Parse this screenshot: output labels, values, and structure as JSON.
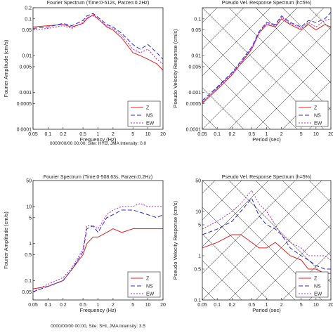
{
  "colors": {
    "Z": "#e02020",
    "NS": "#2a2ad0",
    "EW": "#c020c0"
  },
  "chart_data": [
    {
      "type": "line",
      "title": "Fourier Spectrum (Time:0-512s, Parzen:0.2Hz)",
      "xlabel": "Frequency (Hz)",
      "ylabel": "Fourier Amplitude (cm/s)",
      "xscale": "log",
      "yscale": "log",
      "xlim": [
        0.05,
        20
      ],
      "ylim": [
        0.0001,
        0.2
      ],
      "xticks": [
        "0.05",
        "0.1",
        "0.2",
        "0.5",
        "1",
        "2",
        "5",
        "10",
        "20"
      ],
      "yticks": [
        "0.2",
        "0.1",
        "0.05",
        "0.01",
        "0.005",
        "0.001",
        "0.0005",
        "0.0001"
      ],
      "legend": "bottom-right",
      "footer": "0000/00/00 00:00, Site: HYB, JMA Intensity: 0.0",
      "series": [
        {
          "name": "Z",
          "x": [
            0.05,
            0.1,
            0.2,
            0.3,
            0.5,
            0.6,
            0.8,
            1,
            1.5,
            2,
            3,
            5,
            7,
            10,
            15,
            20
          ],
          "y": [
            0.06,
            0.065,
            0.07,
            0.06,
            0.075,
            0.1,
            0.13,
            0.1,
            0.06,
            0.05,
            0.03,
            0.012,
            0.01,
            0.008,
            0.006,
            0.004
          ]
        },
        {
          "name": "NS",
          "x": [
            0.05,
            0.1,
            0.2,
            0.3,
            0.5,
            0.6,
            0.8,
            1,
            1.5,
            2,
            3,
            5,
            7,
            10,
            15,
            20
          ],
          "y": [
            0.055,
            0.06,
            0.075,
            0.065,
            0.09,
            0.12,
            0.14,
            0.11,
            0.07,
            0.06,
            0.04,
            0.02,
            0.015,
            0.02,
            0.012,
            0.008
          ]
        },
        {
          "name": "EW",
          "x": [
            0.05,
            0.1,
            0.2,
            0.3,
            0.5,
            0.6,
            0.8,
            1,
            1.5,
            2,
            3,
            5,
            7,
            10,
            15,
            20
          ],
          "y": [
            0.05,
            0.055,
            0.065,
            0.055,
            0.08,
            0.11,
            0.12,
            0.1,
            0.065,
            0.055,
            0.035,
            0.015,
            0.012,
            0.015,
            0.008,
            0.006
          ]
        }
      ]
    },
    {
      "type": "line",
      "title": "Pseudo Vel. Response Spectrum (h=5%)",
      "xlabel": "Period (sec)",
      "ylabel": "Pseudo Velocity Response (cm/s)",
      "xscale": "log",
      "yscale": "log",
      "xlim": [
        0.05,
        20
      ],
      "ylim": [
        0.0001,
        0.2
      ],
      "xticks": [
        "0.05",
        "0.1",
        "0.2",
        "0.5",
        "1",
        "2",
        "5",
        "10",
        "20"
      ],
      "yticks": [
        "0.1",
        "0.05",
        "0.01",
        "0.005",
        "0.001",
        "0.0005",
        "0.0001"
      ],
      "legend": "bottom-right",
      "series": [
        {
          "name": "Z",
          "x": [
            0.05,
            0.1,
            0.2,
            0.3,
            0.5,
            0.7,
            1,
            1.5,
            2,
            3,
            5,
            7,
            10,
            15,
            20
          ],
          "y": [
            0.0005,
            0.0012,
            0.003,
            0.006,
            0.015,
            0.04,
            0.07,
            0.06,
            0.1,
            0.07,
            0.05,
            0.07,
            0.05,
            0.07,
            0.06
          ]
        },
        {
          "name": "NS",
          "x": [
            0.05,
            0.1,
            0.2,
            0.3,
            0.5,
            0.7,
            1,
            1.5,
            2,
            3,
            5,
            7,
            10,
            15,
            20
          ],
          "y": [
            0.0006,
            0.0014,
            0.0035,
            0.007,
            0.017,
            0.045,
            0.08,
            0.07,
            0.12,
            0.08,
            0.06,
            0.09,
            0.08,
            0.1,
            0.15
          ]
        },
        {
          "name": "EW",
          "x": [
            0.05,
            0.1,
            0.2,
            0.3,
            0.5,
            0.7,
            1,
            1.5,
            2,
            3,
            5,
            7,
            10,
            15,
            20
          ],
          "y": [
            0.00055,
            0.0013,
            0.0032,
            0.0065,
            0.016,
            0.042,
            0.075,
            0.065,
            0.11,
            0.075,
            0.055,
            0.08,
            0.06,
            0.09,
            0.1
          ]
        }
      ]
    },
    {
      "type": "line",
      "title": "Fourier Spectrum (Time:0-508.63s, Parzen:0.2Hz)",
      "xlabel": "Frequency (Hz)",
      "ylabel": "Fourier Amplitude (cm/s)",
      "xscale": "log",
      "yscale": "log",
      "xlim": [
        0.05,
        20
      ],
      "ylim": [
        0.03,
        50
      ],
      "xticks": [
        "0.05",
        "0.1",
        "0.2",
        "0.5",
        "1",
        "2",
        "5",
        "10",
        "20"
      ],
      "yticks": [
        "50",
        "10",
        "5",
        "1",
        "0.5",
        "0.1",
        "0.05"
      ],
      "legend": "bottom-right",
      "footer": "0000/00/00 00:00, Site: SHI, JMA Intensity: 3.5",
      "series": [
        {
          "name": "Z",
          "x": [
            0.05,
            0.1,
            0.2,
            0.3,
            0.5,
            0.6,
            0.8,
            1,
            1.5,
            2,
            3,
            5,
            7,
            10,
            15,
            20
          ],
          "y": [
            0.06,
            0.07,
            0.1,
            0.2,
            0.5,
            1.0,
            1.5,
            1.5,
            2,
            2.5,
            2,
            2.5,
            2.5,
            2.5,
            2.5,
            2.5
          ]
        },
        {
          "name": "NS",
          "x": [
            0.05,
            0.1,
            0.2,
            0.3,
            0.5,
            0.6,
            0.8,
            1,
            1.5,
            2,
            3,
            5,
            7,
            10,
            15,
            20
          ],
          "y": [
            0.05,
            0.07,
            0.1,
            0.2,
            0.6,
            2.5,
            3,
            2,
            5,
            6,
            8,
            8,
            7,
            6,
            5,
            6
          ]
        },
        {
          "name": "EW",
          "x": [
            0.05,
            0.1,
            0.2,
            0.3,
            0.5,
            0.6,
            0.8,
            1,
            1.5,
            2,
            3,
            5,
            7,
            10,
            15,
            20
          ],
          "y": [
            0.05,
            0.08,
            0.12,
            0.22,
            0.7,
            3,
            3,
            2.5,
            6,
            8,
            10,
            10,
            12,
            10,
            10,
            10
          ]
        }
      ]
    },
    {
      "type": "line",
      "title": "Pseudo Vel. Response Spectrum (h=5%)",
      "xlabel": "Period (sec)",
      "ylabel": "Pseudo Velocity Response (cm/s)",
      "xscale": "log",
      "yscale": "log",
      "xlim": [
        0.05,
        20
      ],
      "ylim": [
        0.1,
        50
      ],
      "xticks": [
        "0.05",
        "0.1",
        "0.2",
        "0.5",
        "1",
        "2",
        "5",
        "10",
        "20"
      ],
      "yticks": [
        "50",
        "10",
        "5",
        "1",
        "0.5",
        "0.1"
      ],
      "legend": "bottom-right",
      "series": [
        {
          "name": "Z",
          "x": [
            0.05,
            0.1,
            0.2,
            0.3,
            0.5,
            0.7,
            1,
            1.5,
            2,
            3,
            5,
            7,
            10,
            15,
            20
          ],
          "y": [
            1.5,
            2,
            3,
            3,
            2,
            1.5,
            1.5,
            2,
            1.5,
            1,
            0.8,
            0.5,
            0.5,
            0.4,
            0.4
          ]
        },
        {
          "name": "NS",
          "x": [
            0.05,
            0.1,
            0.2,
            0.3,
            0.5,
            0.7,
            1,
            1.5,
            2,
            3,
            5,
            7,
            10,
            15,
            20
          ],
          "y": [
            3,
            4,
            6,
            10,
            20,
            8,
            5,
            4,
            3,
            1.5,
            1,
            0.8,
            0.6,
            0.5,
            0.5
          ]
        },
        {
          "name": "EW",
          "x": [
            0.05,
            0.1,
            0.2,
            0.3,
            0.5,
            0.7,
            1,
            1.5,
            2,
            3,
            5,
            7,
            10,
            15,
            20
          ],
          "y": [
            4,
            6,
            10,
            15,
            30,
            15,
            10,
            5,
            3,
            2,
            1.5,
            1,
            1,
            1,
            0.8
          ]
        }
      ]
    }
  ]
}
